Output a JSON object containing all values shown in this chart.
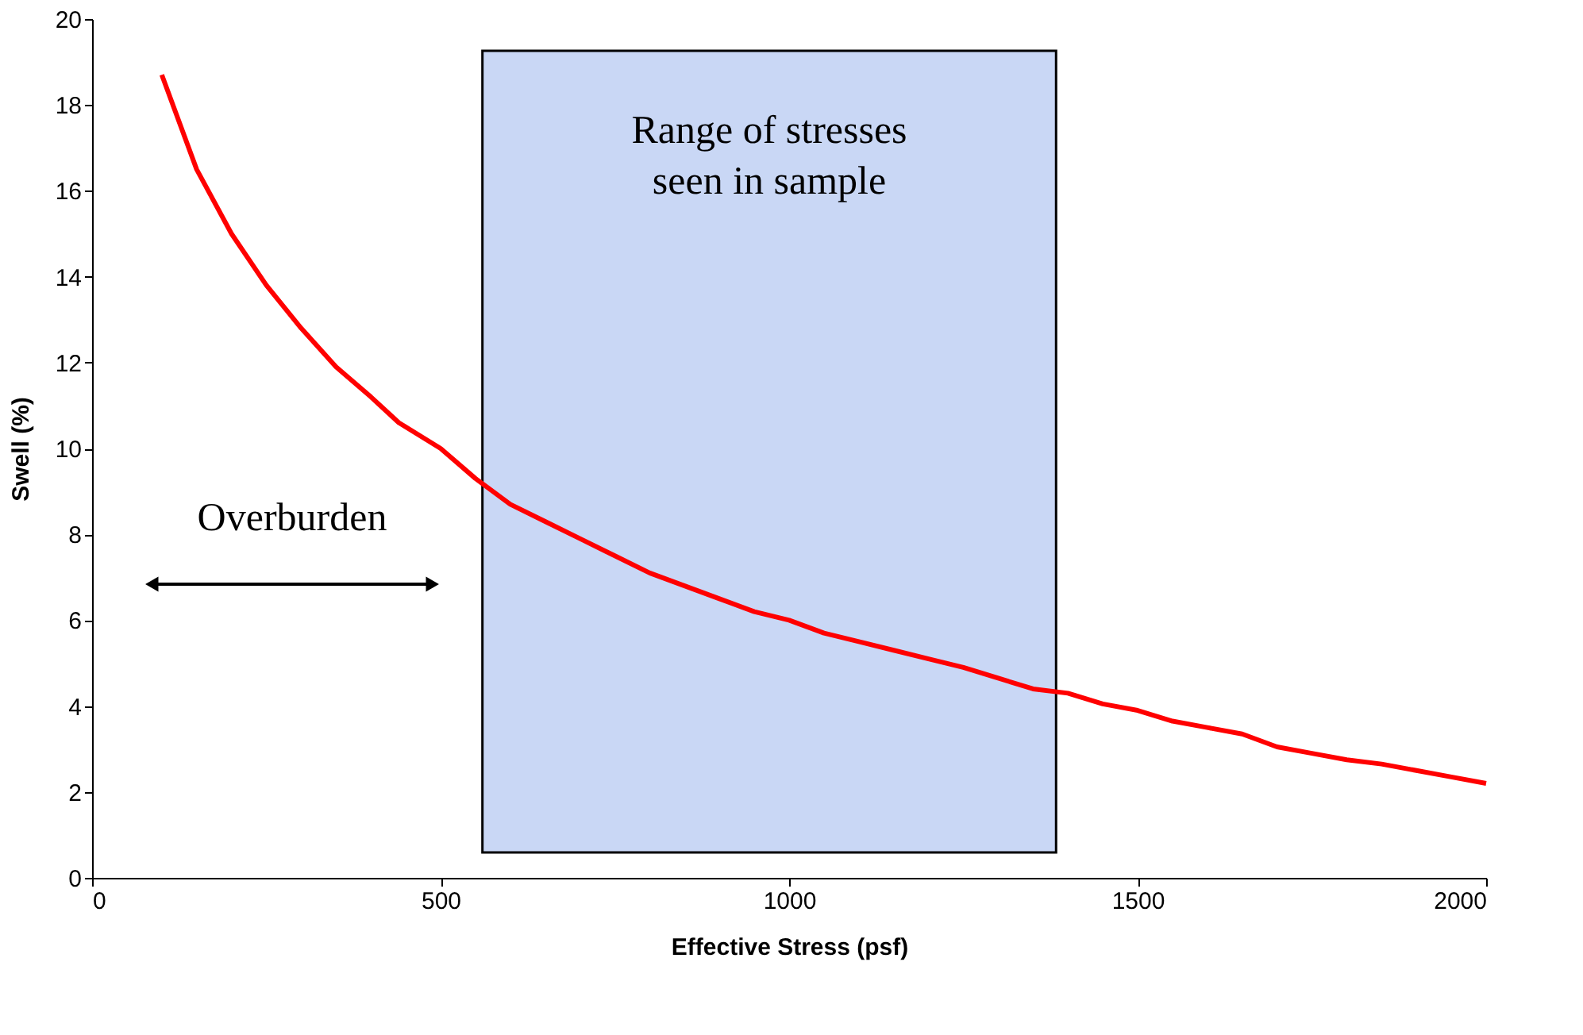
{
  "chart_data": {
    "type": "line",
    "xlabel": "Effective Stress (psf)",
    "ylabel": "Swell (%)",
    "x": [
      100,
      150,
      200,
      250,
      300,
      350,
      400,
      440,
      500,
      550,
      600,
      650,
      700,
      750,
      800,
      850,
      900,
      950,
      1000,
      1050,
      1100,
      1150,
      1200,
      1250,
      1300,
      1350,
      1400,
      1450,
      1500,
      1550,
      1600,
      1650,
      1700,
      1750,
      1800,
      1850,
      1900,
      1950,
      2000
    ],
    "series": [
      {
        "color": "#ff0000",
        "values": [
          18.7,
          16.5,
          15.0,
          13.8,
          12.8,
          11.9,
          11.2,
          10.6,
          10.0,
          9.3,
          8.7,
          8.3,
          7.9,
          7.5,
          7.1,
          6.8,
          6.5,
          6.2,
          6.0,
          5.7,
          5.5,
          5.3,
          5.1,
          4.9,
          4.65,
          4.4,
          4.3,
          4.05,
          3.9,
          3.65,
          3.5,
          3.35,
          3.05,
          2.9,
          2.75,
          2.65,
          2.5,
          2.35,
          2.2
        ]
      }
    ],
    "xlim": [
      0,
      2000
    ],
    "xticks": [
      0,
      500,
      1000,
      1500,
      2000
    ],
    "ylim": [
      0,
      20
    ],
    "yticks": [
      0,
      2,
      4,
      6,
      8,
      10,
      12,
      14,
      16,
      18,
      20
    ],
    "bands": [
      {
        "axis": "x",
        "from": 560,
        "to": 1383,
        "label": "Range of stresses seen in sample",
        "color": "#c9d7f5"
      }
    ],
    "annotations": [
      "Overburden"
    ],
    "grid": false,
    "legend": false,
    "marker": "none",
    "line_style": "solid"
  }
}
